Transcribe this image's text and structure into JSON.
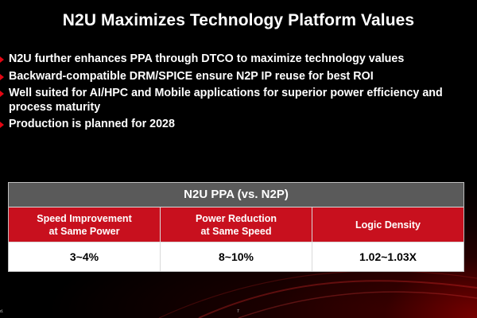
{
  "slide": {
    "title": "N2U Maximizes Technology Platform Values",
    "bullets": [
      "N2U further enhances PPA through DTCO to maximize technology values",
      "Backward-compatible DRM/SPICE ensure N2P IP reuse for best ROI",
      "Well suited for AI/HPC and Mobile applications for superior power efficiency and process maturity",
      "Production is planned for 2028"
    ]
  },
  "table": {
    "title": "N2U PPA (vs. N2P)",
    "columns": [
      {
        "header": "Speed Improvement\nat Same Power",
        "value": "3~4%"
      },
      {
        "header": "Power Reduction\nat Same Speed",
        "value": "8~10%"
      },
      {
        "header": "Logic Density",
        "value": "1.02~1.03X"
      }
    ]
  },
  "footer": {
    "left_text": "d.",
    "page_number": "7"
  },
  "colors": {
    "background": "#000000",
    "accent_red": "#c8101e",
    "bullet_red": "#e30613",
    "table_header_gray": "#5a5a5a"
  }
}
